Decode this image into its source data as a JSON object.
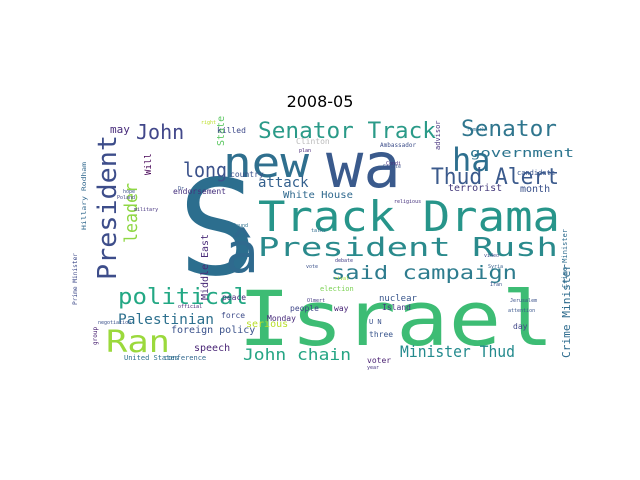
{
  "chart_data": {
    "type": "wordcloud",
    "title": "2008-05",
    "words": [
      {
        "text": "S",
        "color": "#2c6e8e"
      },
      {
        "text": "wa",
        "color": "#3a5a8c"
      },
      {
        "text": "Israel",
        "color": "#3dbc74"
      },
      {
        "text": "Track Drama",
        "color": "#27958a"
      },
      {
        "text": "President Rush",
        "color": "#2a8a8c"
      },
      {
        "text": "new",
        "color": "#2f6f8e"
      },
      {
        "text": "â",
        "color": "#2f6a8e"
      },
      {
        "text": "President",
        "color": "#3d4d8a"
      },
      {
        "text": "ha",
        "color": "#2d6f8e"
      },
      {
        "text": "Thud Alert",
        "color": "#3b5a8c"
      },
      {
        "text": "Senator Track",
        "color": "#2a9a88"
      },
      {
        "text": "Senator",
        "color": "#30768e"
      },
      {
        "text": "political",
        "color": "#23a884"
      },
      {
        "text": "said campaign",
        "color": "#2e7c8e"
      },
      {
        "text": "Ran",
        "color": "#9bd93c"
      },
      {
        "text": "John",
        "color": "#41478a"
      },
      {
        "text": "long",
        "color": "#3b528b"
      },
      {
        "text": "leader",
        "color": "#8fd744"
      },
      {
        "text": "attack",
        "color": "#34608d"
      },
      {
        "text": "Palestinian",
        "color": "#2d708e"
      },
      {
        "text": "John chain",
        "color": "#25a584"
      },
      {
        "text": "Minister Thud",
        "color": "#238a8d"
      },
      {
        "text": "government",
        "color": "#2b748e"
      },
      {
        "text": "terrorist",
        "color": "#44397b"
      },
      {
        "text": "month",
        "color": "#3b528b"
      },
      {
        "text": "White House",
        "color": "#30698e"
      },
      {
        "text": "Middle East",
        "color": "#4a2c79"
      },
      {
        "text": "may",
        "color": "#472b7a"
      },
      {
        "text": "Will",
        "color": "#440154"
      },
      {
        "text": "State",
        "color": "#5dc863"
      },
      {
        "text": "killed",
        "color": "#3e4a89"
      },
      {
        "text": "country",
        "color": "#3b528b"
      },
      {
        "text": "endorsement",
        "color": "#46317e"
      },
      {
        "text": "speech",
        "color": "#482475"
      },
      {
        "text": "foreign policy",
        "color": "#3b528b"
      },
      {
        "text": "peace",
        "color": "#472d7b"
      },
      {
        "text": "force",
        "color": "#3e4c8a"
      },
      {
        "text": "serious",
        "color": "#b8de29"
      },
      {
        "text": "Crime Minister",
        "color": "#2f6c8e"
      },
      {
        "text": "nuclear",
        "color": "#39568c"
      },
      {
        "text": "Island",
        "color": "#443a83"
      },
      {
        "text": "Monday",
        "color": "#472a7a"
      },
      {
        "text": "people",
        "color": "#3f4788"
      },
      {
        "text": "election",
        "color": "#7ad151"
      },
      {
        "text": "voter",
        "color": "#481f70"
      },
      {
        "text": "day",
        "color": "#404688"
      },
      {
        "text": "three",
        "color": "#39558c"
      },
      {
        "text": "way",
        "color": "#482576"
      },
      {
        "text": "conference",
        "color": "#31688e"
      },
      {
        "text": "United States",
        "color": "#2d708e"
      },
      {
        "text": "candidate",
        "color": "#39558c"
      },
      {
        "text": "Clinton",
        "color": "#bbbbbb"
      },
      {
        "text": "advisor",
        "color": "#46317e"
      },
      {
        "text": "U N",
        "color": "#3b528b"
      },
      {
        "text": "Crime Minister",
        "color": "#2f6c8e"
      },
      {
        "text": "Ambassador",
        "color": "#3d4e8a"
      },
      {
        "text": "Hillary Rodham",
        "color": "#31688e"
      },
      {
        "text": "group",
        "color": "#482071"
      },
      {
        "text": "Prime Minister",
        "color": "#3e4a89"
      },
      {
        "text": "negotiation",
        "color": "#3b528b"
      },
      {
        "text": "official",
        "color": "#482374"
      },
      {
        "text": "religious",
        "color": "#46327e"
      },
      {
        "text": "Jerusalem",
        "color": "#3b528b"
      },
      {
        "text": "Syria",
        "color": "#355f8d"
      },
      {
        "text": "Iran",
        "color": "#3a548c"
      },
      {
        "text": "remark",
        "color": "#2e6e8e"
      },
      {
        "text": "hope",
        "color": "#3c4f8a"
      },
      {
        "text": "Poland",
        "color": "#404387"
      },
      {
        "text": "military",
        "color": "#46337f"
      },
      {
        "text": "Dr",
        "color": "#3b528b"
      },
      {
        "text": "found",
        "color": "#2d718e"
      },
      {
        "text": "Gaza",
        "color": "#2f6b8e"
      },
      {
        "text": "talks",
        "color": "#2f6b8e"
      },
      {
        "text": "Olmert",
        "color": "#443983"
      },
      {
        "text": "rival",
        "color": "#a5db36"
      },
      {
        "text": "vote",
        "color": "#3b528b"
      },
      {
        "text": "debate",
        "color": "#433e85"
      },
      {
        "text": "Condi",
        "color": "#472f7d"
      },
      {
        "text": "plan",
        "color": "#482677"
      },
      {
        "text": "Senate",
        "color": "#3a538b"
      },
      {
        "text": "attention",
        "color": "#39568c"
      },
      {
        "text": "year",
        "color": "#463480"
      },
      {
        "text": "video",
        "color": "#3d4e8a"
      },
      {
        "text": "right",
        "color": "#bcdf27"
      }
    ]
  }
}
